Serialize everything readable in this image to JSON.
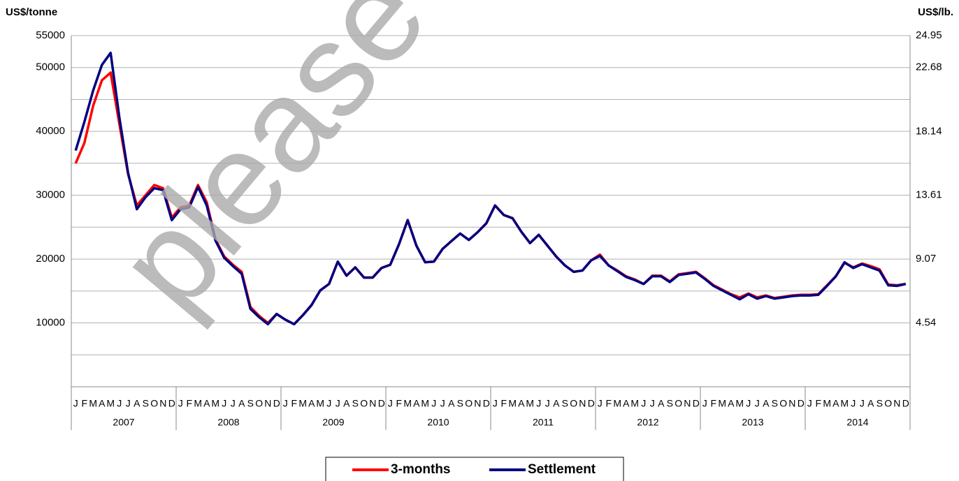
{
  "chart_data": {
    "type": "line",
    "ylabel": "US$/tonne",
    "y2label": "US$/lb.",
    "watermark": "please",
    "ylim": [
      0,
      55000
    ],
    "yticks": [
      10000,
      20000,
      30000,
      40000,
      50000,
      55000
    ],
    "ygrid": [
      5000,
      10000,
      15000,
      20000,
      25000,
      30000,
      35000,
      40000,
      45000,
      50000,
      55000
    ],
    "y2lim": [
      0,
      24.95
    ],
    "y2ticks": [
      4.54,
      9.07,
      13.61,
      18.14,
      22.68,
      24.95
    ],
    "groups": [
      "2007",
      "2008",
      "2009",
      "2010",
      "2011",
      "2012",
      "2013",
      "2014"
    ],
    "categories": [
      "J",
      "F",
      "M",
      "A",
      "M",
      "J",
      "J",
      "A",
      "S",
      "O",
      "N",
      "D",
      "J",
      "F",
      "M",
      "A",
      "M",
      "J",
      "J",
      "A",
      "S",
      "O",
      "N",
      "D",
      "J",
      "F",
      "M",
      "A",
      "M",
      "J",
      "J",
      "A",
      "S",
      "O",
      "N",
      "D",
      "J",
      "F",
      "M",
      "A",
      "M",
      "J",
      "J",
      "A",
      "S",
      "O",
      "N",
      "D",
      "J",
      "F",
      "M",
      "A",
      "M",
      "J",
      "J",
      "A",
      "S",
      "O",
      "N",
      "D",
      "J",
      "F",
      "M",
      "A",
      "M",
      "J",
      "J",
      "A",
      "S",
      "O",
      "N",
      "D",
      "J",
      "F",
      "M",
      "A",
      "M",
      "J",
      "J",
      "A",
      "S",
      "O",
      "N",
      "D",
      "J",
      "F",
      "M",
      "A",
      "M",
      "J",
      "J",
      "A",
      "S",
      "O",
      "N",
      "D"
    ],
    "legend": "bottom",
    "series": [
      {
        "name": "3-months",
        "color": "#ff0000",
        "values": [
          35000,
          38200,
          44000,
          48000,
          49200,
          41200,
          33300,
          28400,
          30000,
          31600,
          31100,
          26500,
          28100,
          28400,
          31600,
          28900,
          23100,
          20400,
          19100,
          18000,
          12500,
          11100,
          10000,
          11400,
          10500,
          9800,
          11200,
          12800,
          15100,
          16100,
          19600,
          17400,
          18700,
          17100,
          17100,
          18600,
          19100,
          22300,
          26100,
          22100,
          19500,
          19600,
          21600,
          22800,
          24000,
          23000,
          24200,
          25600,
          28400,
          26900,
          26400,
          24300,
          22500,
          23800,
          22100,
          20400,
          19000,
          18000,
          18200,
          19800,
          20700,
          19000,
          18200,
          17300,
          16800,
          16100,
          17400,
          17400,
          16500,
          17600,
          17800,
          18000,
          17000,
          15900,
          15200,
          14500,
          14000,
          14600,
          14000,
          14300,
          13900,
          14100,
          14300,
          14400,
          14400,
          14500,
          15900,
          17300,
          19400,
          18700,
          19300,
          18900,
          18400,
          16000,
          15900,
          16100
        ]
      },
      {
        "name": "Settlement",
        "color": "#000080",
        "values": [
          37000,
          41500,
          46400,
          50400,
          52300,
          42200,
          33500,
          27800,
          29700,
          31100,
          30800,
          26100,
          27800,
          28100,
          31300,
          28400,
          22900,
          20200,
          18900,
          17700,
          12200,
          10900,
          9800,
          11400,
          10500,
          9800,
          11200,
          12800,
          15100,
          16100,
          19600,
          17400,
          18700,
          17100,
          17100,
          18600,
          19100,
          22300,
          26100,
          22100,
          19500,
          19600,
          21600,
          22800,
          24000,
          23000,
          24200,
          25600,
          28400,
          26900,
          26400,
          24300,
          22500,
          23800,
          22100,
          20400,
          19000,
          18000,
          18200,
          19800,
          20500,
          19000,
          18100,
          17200,
          16700,
          16100,
          17300,
          17300,
          16400,
          17500,
          17700,
          17900,
          16900,
          15800,
          15100,
          14400,
          13700,
          14500,
          13800,
          14200,
          13800,
          14000,
          14200,
          14300,
          14300,
          14400,
          15800,
          17300,
          19500,
          18600,
          19200,
          18700,
          18200,
          15900,
          15800,
          16100
        ]
      }
    ]
  }
}
